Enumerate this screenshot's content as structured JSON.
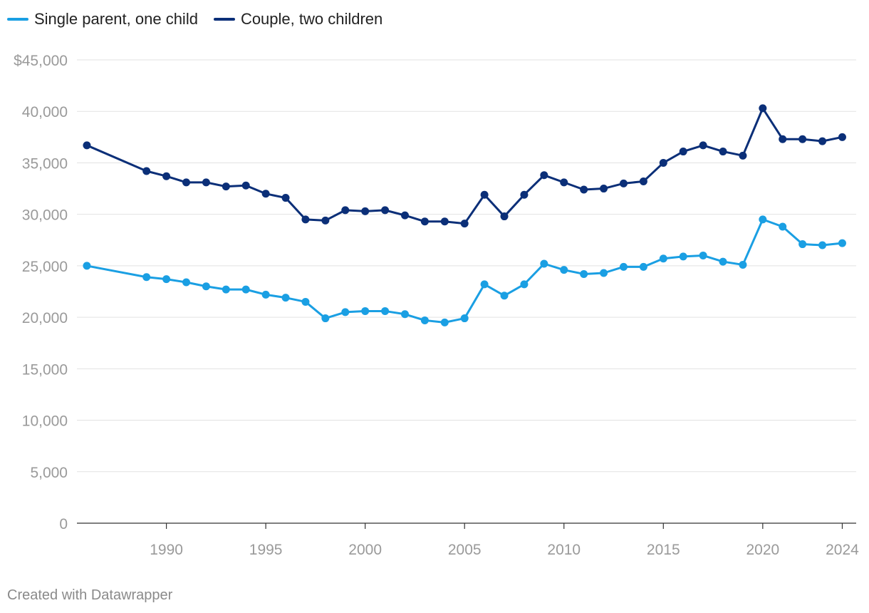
{
  "legend": [
    {
      "label": "Single parent, one child",
      "color": "#1a9fe3"
    },
    {
      "label": "Couple, two children",
      "color": "#0b2f78"
    }
  ],
  "footer": "Created with Datawrapper",
  "chart_data": {
    "type": "line",
    "title": "",
    "xlabel": "",
    "ylabel": "",
    "xlim": [
      1985.5,
      2024.7
    ],
    "ylim": [
      0,
      45000
    ],
    "grid": true,
    "legend_position": "top-left",
    "y_ticks": [
      0,
      5000,
      10000,
      15000,
      20000,
      25000,
      30000,
      35000,
      40000,
      45000
    ],
    "y_tick_labels": [
      "0",
      "5,000",
      "10,000",
      "15,000",
      "20,000",
      "25,000",
      "30,000",
      "35,000",
      "40,000",
      "$45,000"
    ],
    "x_ticks": [
      1990,
      1995,
      2000,
      2005,
      2010,
      2015,
      2020,
      2024
    ],
    "x_tick_labels": [
      "1990",
      "1995",
      "2000",
      "2005",
      "2010",
      "2015",
      "2020",
      "2024"
    ],
    "x": [
      1986,
      1989,
      1990,
      1991,
      1992,
      1993,
      1994,
      1995,
      1996,
      1997,
      1998,
      1999,
      2000,
      2001,
      2002,
      2003,
      2004,
      2005,
      2006,
      2007,
      2008,
      2009,
      2010,
      2011,
      2012,
      2013,
      2014,
      2015,
      2016,
      2017,
      2018,
      2019,
      2020,
      2021,
      2022,
      2023,
      2024
    ],
    "series": [
      {
        "name": "Single parent, one child",
        "color": "#1a9fe3",
        "values": [
          25000,
          23900,
          23700,
          23400,
          23000,
          22700,
          22700,
          22200,
          21900,
          21500,
          19900,
          20500,
          20600,
          20600,
          20300,
          19700,
          19500,
          19900,
          23200,
          22100,
          23200,
          25200,
          24600,
          24200,
          24300,
          24900,
          24900,
          25700,
          25900,
          26000,
          25400,
          25100,
          29500,
          28800,
          27100,
          27000,
          27200
        ]
      },
      {
        "name": "Couple, two children",
        "color": "#0b2f78",
        "values": [
          36700,
          34200,
          33700,
          33100,
          33100,
          32700,
          32800,
          32000,
          31600,
          29500,
          29400,
          30400,
          30300,
          30400,
          29900,
          29300,
          29300,
          29100,
          31900,
          29800,
          31900,
          33800,
          33100,
          32400,
          32500,
          33000,
          33200,
          35000,
          36100,
          36700,
          36100,
          35700,
          40300,
          37300,
          37300,
          37100,
          37500
        ]
      }
    ]
  }
}
